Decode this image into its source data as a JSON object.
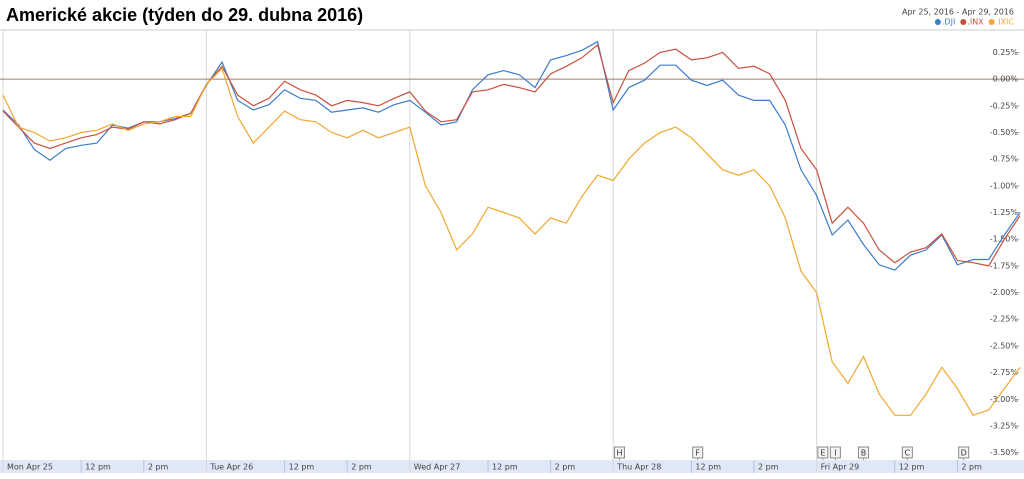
{
  "chart_data": {
    "type": "line",
    "title": "Americké akcie (týden do 29. dubna 2016)",
    "date_range": "Apr 25, 2016 - Apr 29, 2016",
    "x": [
      0,
      0.5,
      1,
      1.5,
      2,
      2.5,
      3,
      3.5,
      4,
      4.5,
      5,
      5.5,
      6,
      6.5,
      7,
      7.5,
      8,
      8.5,
      9,
      9.5,
      10,
      10.5,
      11,
      11.5,
      12,
      12.5,
      13,
      13.5,
      14,
      14.5,
      15,
      15.5,
      16,
      16.5,
      17,
      17.5,
      18,
      18.5,
      19,
      19.5,
      20,
      20.5,
      21,
      21.5,
      22,
      22.5,
      23,
      23.5,
      24,
      24.5,
      25,
      25.5,
      26,
      26.5,
      27,
      27.5,
      28,
      28.5,
      29,
      29.5,
      30,
      30.5,
      31,
      31.5,
      32,
      32.5
    ],
    "series": [
      {
        "name": ".DJI",
        "color": "#3d7cc9",
        "values": [
          -0.29,
          -0.43,
          -0.66,
          -0.76,
          -0.65,
          -0.62,
          -0.6,
          -0.43,
          -0.46,
          -0.4,
          -0.4,
          -0.37,
          -0.32,
          -0.06,
          0.16,
          -0.2,
          -0.29,
          -0.24,
          -0.1,
          -0.18,
          -0.2,
          -0.31,
          -0.29,
          -0.27,
          -0.31,
          -0.24,
          -0.2,
          -0.31,
          -0.43,
          -0.4,
          -0.1,
          0.04,
          0.08,
          0.04,
          -0.08,
          0.18,
          0.22,
          0.27,
          0.35,
          -0.29,
          -0.08,
          -0.01,
          0.13,
          0.13,
          -0.01,
          -0.06,
          -0.01,
          -0.15,
          -0.2,
          -0.2,
          -0.43,
          -0.85,
          -1.09,
          -1.46,
          -1.32,
          -1.55,
          -1.74,
          -1.79,
          -1.65,
          -1.6,
          -1.46,
          -1.74,
          -1.69,
          -1.69,
          -1.46,
          -1.25
        ]
      },
      {
        "name": ".INX",
        "color": "#c9503f",
        "values": [
          -0.3,
          -0.45,
          -0.6,
          -0.65,
          -0.6,
          -0.55,
          -0.52,
          -0.45,
          -0.47,
          -0.4,
          -0.42,
          -0.38,
          -0.32,
          -0.05,
          0.12,
          -0.15,
          -0.25,
          -0.18,
          -0.02,
          -0.1,
          -0.15,
          -0.25,
          -0.2,
          -0.22,
          -0.25,
          -0.18,
          -0.12,
          -0.3,
          -0.4,
          -0.38,
          -0.12,
          -0.1,
          -0.05,
          -0.08,
          -0.12,
          0.05,
          0.12,
          0.2,
          0.32,
          -0.22,
          0.08,
          0.15,
          0.25,
          0.28,
          0.18,
          0.2,
          0.25,
          0.1,
          0.12,
          0.05,
          -0.2,
          -0.65,
          -0.85,
          -1.35,
          -1.2,
          -1.35,
          -1.6,
          -1.72,
          -1.62,
          -1.58,
          -1.45,
          -1.7,
          -1.72,
          -1.75,
          -1.5,
          -1.28
        ]
      },
      {
        "name": ".IXIC",
        "color": "#f0a830",
        "values": [
          -0.15,
          -0.45,
          -0.5,
          -0.58,
          -0.55,
          -0.5,
          -0.48,
          -0.42,
          -0.48,
          -0.42,
          -0.4,
          -0.35,
          -0.35,
          -0.05,
          0.1,
          -0.35,
          -0.6,
          -0.45,
          -0.3,
          -0.38,
          -0.4,
          -0.5,
          -0.55,
          -0.48,
          -0.55,
          -0.5,
          -0.45,
          -1.0,
          -1.25,
          -1.6,
          -1.45,
          -1.2,
          -1.25,
          -1.3,
          -1.45,
          -1.3,
          -1.35,
          -1.1,
          -0.9,
          -0.95,
          -0.75,
          -0.6,
          -0.5,
          -0.45,
          -0.55,
          -0.7,
          -0.85,
          -0.9,
          -0.85,
          -1.0,
          -1.3,
          -1.8,
          -2.0,
          -2.65,
          -2.85,
          -2.6,
          -2.95,
          -3.15,
          -3.15,
          -2.95,
          -2.7,
          -2.9,
          -3.15,
          -3.1,
          -2.9,
          -2.7
        ]
      }
    ],
    "xlim": [
      0,
      32.5
    ],
    "xticks": [
      {
        "value": 0,
        "label": "Mon Apr 25"
      },
      {
        "value": 2.5,
        "label": "12 pm"
      },
      {
        "value": 4.5,
        "label": "2 pm"
      },
      {
        "value": 6.5,
        "label": "Tue Apr 26"
      },
      {
        "value": 9,
        "label": "12 pm"
      },
      {
        "value": 11,
        "label": "2 pm"
      },
      {
        "value": 13,
        "label": "Wed Apr 27"
      },
      {
        "value": 15.5,
        "label": "12 pm"
      },
      {
        "value": 17.5,
        "label": "2 pm"
      },
      {
        "value": 19.5,
        "label": "Thu Apr 28"
      },
      {
        "value": 22,
        "label": "12 pm"
      },
      {
        "value": 24,
        "label": "2 pm"
      },
      {
        "value": 26,
        "label": "Fri Apr 29"
      },
      {
        "value": 28.5,
        "label": "12 pm"
      },
      {
        "value": 30.5,
        "label": "2 pm"
      }
    ],
    "ylim": [
      -3.55,
      0.46
    ],
    "yticks": [
      {
        "value": 0.25,
        "label": "0.25%"
      },
      {
        "value": 0,
        "label": "0.00%"
      },
      {
        "value": -0.25,
        "label": "-0.25%"
      },
      {
        "value": -0.5,
        "label": "-0.50%"
      },
      {
        "value": -0.75,
        "label": "-0.75%"
      },
      {
        "value": -1,
        "label": "-1.00%"
      },
      {
        "value": -1.25,
        "label": "-1.25%"
      },
      {
        "value": -1.5,
        "label": "-1.50%"
      },
      {
        "value": -1.75,
        "label": "-1.75%"
      },
      {
        "value": -2,
        "label": "-2.00%"
      },
      {
        "value": -2.25,
        "label": "-2.25%"
      },
      {
        "value": -2.5,
        "label": "-2.50%"
      },
      {
        "value": -2.75,
        "label": "-2.75%"
      },
      {
        "value": -3,
        "label": "-3.00%"
      },
      {
        "value": -3.25,
        "label": "-3.25%"
      },
      {
        "value": -3.5,
        "label": "-3.50%"
      }
    ],
    "annotations": [
      {
        "x": 19.7,
        "label": "H"
      },
      {
        "x": 22.2,
        "label": "F"
      },
      {
        "x": 26.2,
        "label": "E"
      },
      {
        "x": 26.6,
        "label": "I"
      },
      {
        "x": 27.5,
        "label": "B"
      },
      {
        "x": 28.9,
        "label": "C"
      },
      {
        "x": 30.7,
        "label": "D"
      }
    ]
  }
}
